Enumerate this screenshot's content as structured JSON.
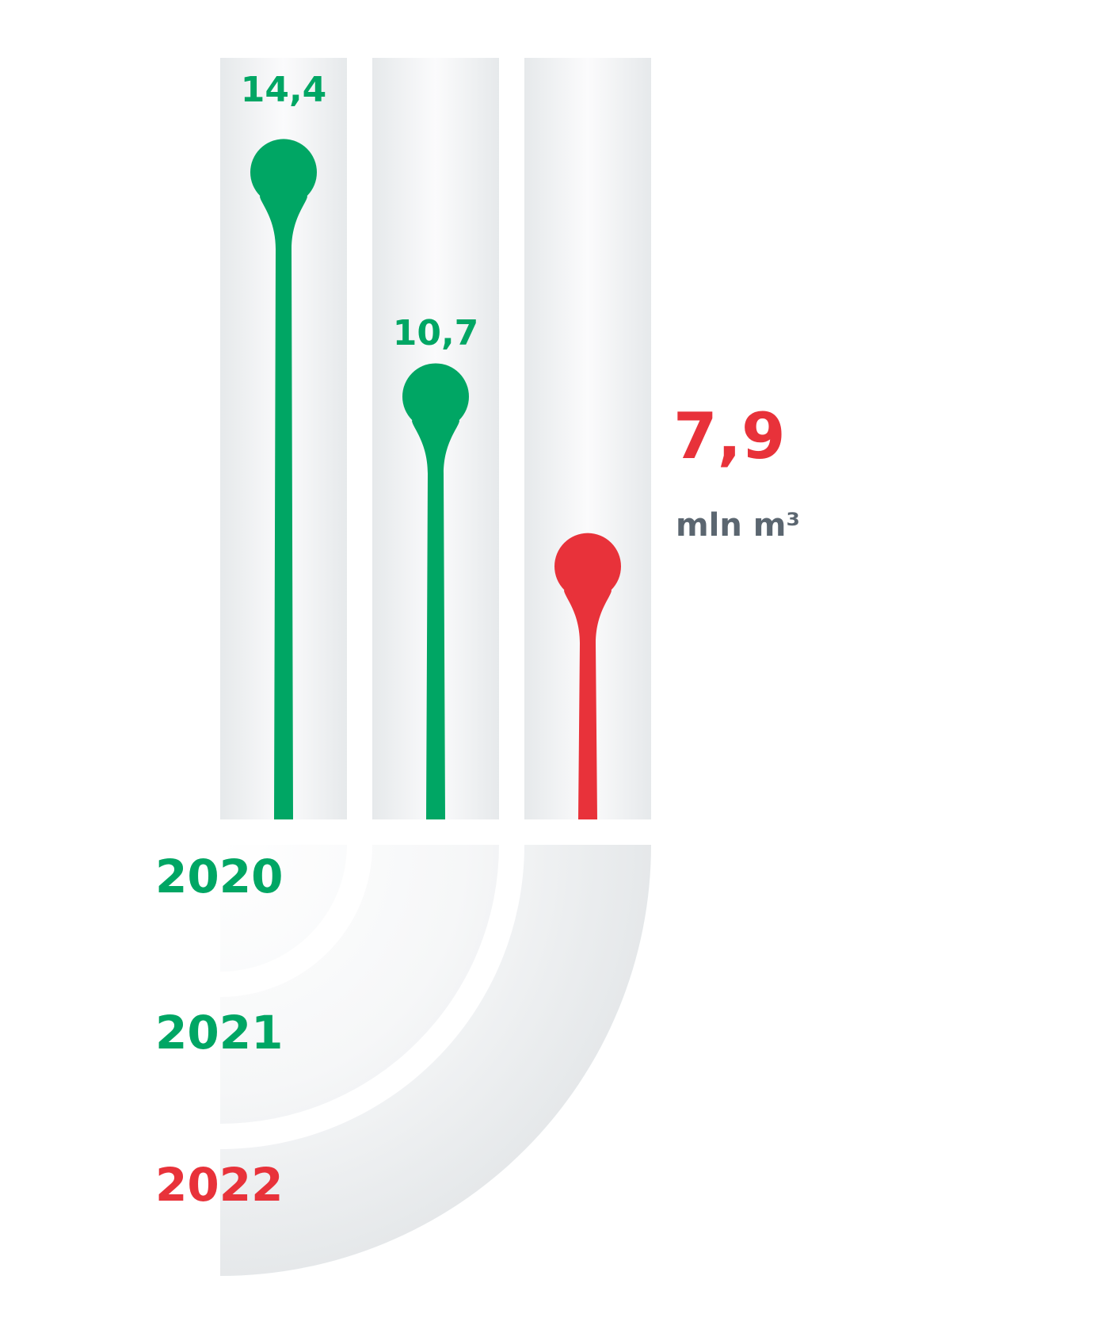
{
  "chart_data": {
    "type": "lollipop",
    "categories": [
      "2020",
      "2021",
      "2022"
    ],
    "values": [
      14.4,
      10.7,
      7.9
    ],
    "value_labels": [
      "14,4",
      "10,7",
      "7,9"
    ],
    "unit": "mln m³",
    "colors": {
      "past": "#00a664",
      "current": "#e8323a",
      "track": "#eceeef",
      "unit_text": "#5b6670"
    },
    "highlight_index": 2,
    "ylim": [
      0,
      16
    ]
  }
}
